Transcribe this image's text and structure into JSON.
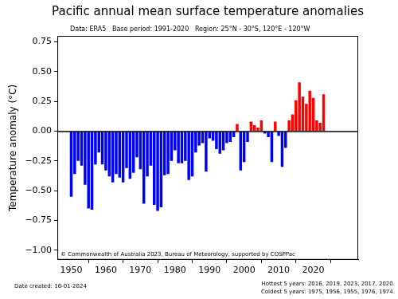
{
  "chart_data": {
    "type": "bar",
    "title": "Pacific annual mean surface temperature anomalies",
    "subtitle": "Data: ERA5   Base period: 1991-2020   Region: 25°N - 30°S, 120°E - 120°W",
    "y_label": "Temperature anomaly (°C)",
    "annotations": [
      "© Commonwealth of Australia 2023, Bureau of Meteorology, supported by COSPPac"
    ],
    "footer_left": "Date created: 16-01-2024",
    "footer_right": [
      "Hottest 5 years: 2016, 2019, 2023, 2017, 2020.",
      "Coldest 5 years: 1975, 1956, 1955, 1976, 1974."
    ],
    "x": [
      1950,
      1951,
      1952,
      1953,
      1954,
      1955,
      1956,
      1957,
      1958,
      1959,
      1960,
      1961,
      1962,
      1963,
      1964,
      1965,
      1966,
      1967,
      1968,
      1969,
      1970,
      1971,
      1972,
      1973,
      1974,
      1975,
      1976,
      1977,
      1978,
      1979,
      1980,
      1981,
      1982,
      1983,
      1984,
      1985,
      1986,
      1987,
      1988,
      1989,
      1990,
      1991,
      1992,
      1993,
      1994,
      1995,
      1996,
      1997,
      1998,
      1999,
      2000,
      2001,
      2002,
      2003,
      2004,
      2005,
      2006,
      2007,
      2008,
      2009,
      2010,
      2011,
      2012,
      2013,
      2014,
      2015,
      2016,
      2017,
      2018,
      2019,
      2020,
      2021,
      2022,
      2023
    ],
    "values": [
      -0.55,
      -0.36,
      -0.25,
      -0.29,
      -0.45,
      -0.65,
      -0.66,
      -0.28,
      -0.18,
      -0.28,
      -0.33,
      -0.38,
      -0.43,
      -0.36,
      -0.39,
      -0.43,
      -0.31,
      -0.4,
      -0.35,
      -0.22,
      -0.32,
      -0.61,
      -0.38,
      -0.29,
      -0.62,
      -0.67,
      -0.64,
      -0.37,
      -0.36,
      -0.25,
      -0.16,
      -0.27,
      -0.27,
      -0.25,
      -0.41,
      -0.38,
      -0.18,
      -0.12,
      -0.1,
      -0.34,
      -0.06,
      -0.08,
      -0.15,
      -0.19,
      -0.16,
      -0.1,
      -0.09,
      -0.05,
      0.06,
      -0.33,
      -0.26,
      -0.09,
      0.08,
      0.05,
      0.03,
      0.09,
      -0.02,
      -0.05,
      -0.26,
      0.08,
      -0.04,
      -0.3,
      -0.14,
      0.09,
      0.14,
      0.26,
      0.41,
      0.29,
      0.23,
      0.34,
      0.28,
      0.09,
      0.07,
      0.31
    ],
    "colors": [
      "#0000ff",
      "#0000ff",
      "#0000ff",
      "#0000ff",
      "#0000ff",
      "#0000ff",
      "#0000ff",
      "#0000ff",
      "#0000ff",
      "#0000ff",
      "#0000ff",
      "#0000ff",
      "#0000ff",
      "#0000ff",
      "#0000ff",
      "#0000ff",
      "#0000ff",
      "#0000ff",
      "#0000ff",
      "#0000ff",
      "#0000ff",
      "#0000ff",
      "#0000ff",
      "#0000ff",
      "#0000ff",
      "#0000ff",
      "#0000ff",
      "#0000ff",
      "#0000ff",
      "#0000ff",
      "#0000ff",
      "#0000ff",
      "#0000ff",
      "#0000ff",
      "#0000ff",
      "#0000ff",
      "#0000ff",
      "#0000ff",
      "#0000ff",
      "#0000ff",
      "#0000ff",
      "#0000ff",
      "#0000ff",
      "#0000ff",
      "#0000ff",
      "#0000ff",
      "#0000ff",
      "#0000ff",
      "#ff0000",
      "#0000ff",
      "#0000ff",
      "#0000ff",
      "#ff0000",
      "#ff0000",
      "#ff0000",
      "#ff0000",
      "#0000ff",
      "#0000ff",
      "#0000ff",
      "#ff0000",
      "#0000ff",
      "#0000ff",
      "#0000ff",
      "#ff0000",
      "#ff0000",
      "#ff0000",
      "#ff0000",
      "#ff0000",
      "#ff0000",
      "#ff0000",
      "#ff0000",
      "#ff0000",
      "#ff0000",
      "#ff0000"
    ],
    "xlim": [
      1946,
      2033
    ],
    "xticks": [
      1950,
      1960,
      1970,
      1980,
      1990,
      2000,
      2010,
      2020
    ],
    "ylim": [
      -1.08,
      0.8
    ],
    "yticks": [
      {
        "value": -1.0,
        "label": "−1.00"
      },
      {
        "value": -0.75,
        "label": "−0.75"
      },
      {
        "value": -0.5,
        "label": "−0.50"
      },
      {
        "value": -0.25,
        "label": "−0.25"
      },
      {
        "value": 0,
        "label": "0.00"
      },
      {
        "value": 0.25,
        "label": "0.25"
      },
      {
        "value": 0.5,
        "label": "0.50"
      },
      {
        "value": 0.75,
        "label": "0.75"
      }
    ],
    "grid": false
  }
}
